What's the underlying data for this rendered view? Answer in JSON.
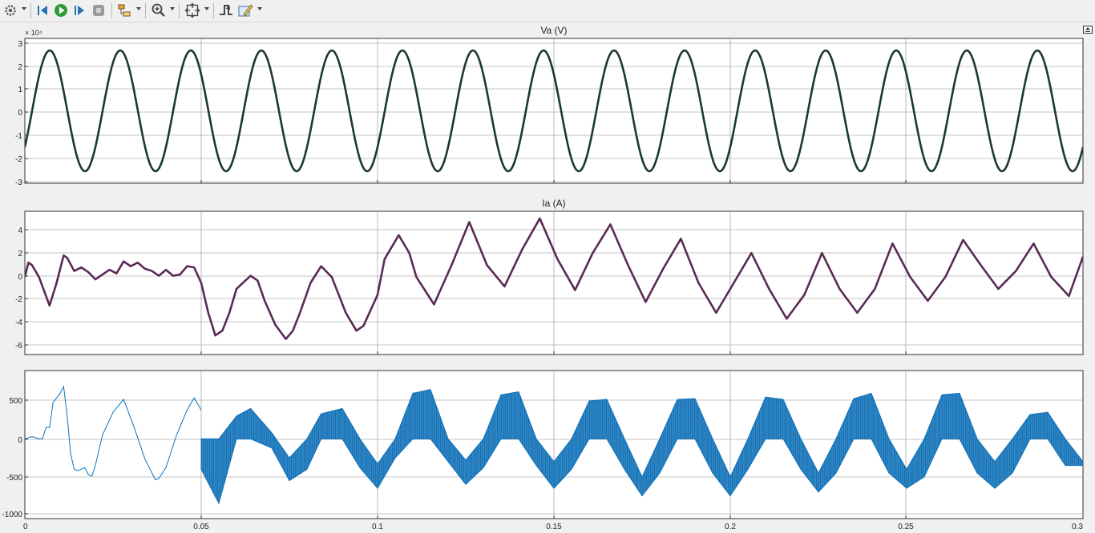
{
  "window": {
    "type": "scope"
  },
  "toolbar": {
    "buttons": [
      {
        "name": "settings-gear-icon",
        "dropdown": true
      },
      {
        "name": "step-back-icon"
      },
      {
        "name": "run-icon"
      },
      {
        "name": "step-forward-icon"
      },
      {
        "name": "stop-icon"
      },
      {
        "name": "highlight-block-icon",
        "dropdown": true
      },
      {
        "name": "zoom-in-icon",
        "dropdown": true
      },
      {
        "name": "autoscale-icon",
        "dropdown": true
      },
      {
        "name": "triggers-icon"
      },
      {
        "name": "write-data-icon",
        "dropdown": true
      }
    ]
  },
  "plots": [
    {
      "title": "Va (V)",
      "exponent": "× 10⁴",
      "yticks": [
        "3",
        "2",
        "1",
        "0",
        "-1",
        "-2",
        "-3"
      ],
      "color": "#1b3a2c"
    },
    {
      "title": "Ia (A)",
      "exponent": "",
      "yticks": [
        "4",
        "2",
        "0",
        "-2",
        "-4",
        "-6"
      ],
      "color": "#5a2a55"
    },
    {
      "title": "",
      "exponent": "",
      "yticks": [
        "500",
        "0",
        "-500",
        "-1000"
      ],
      "color": "#0b72bd"
    }
  ],
  "xticks": [
    "0",
    "0.05",
    "0.1",
    "0.15",
    "0.2",
    "0.25",
    "0.3"
  ],
  "chart_data": [
    {
      "type": "line",
      "title": "Va (V)",
      "xlim": [
        0,
        0.3
      ],
      "ylim": [
        -30000,
        30000
      ],
      "y_scale_factor": "×10^4",
      "grid": true,
      "series": [
        {
          "waveform": "sinusoid",
          "frequency_hz": 50,
          "amplitude": 25000,
          "y_at_t0": -15000
        }
      ]
    },
    {
      "type": "line",
      "title": "Ia (A)",
      "xlim": [
        0,
        0.3
      ],
      "ylim": [
        -7,
        5
      ],
      "grid": true,
      "series": [
        {
          "x": [
            0,
            0.001,
            0.002,
            0.004,
            0.007,
            0.009,
            0.011,
            0.012,
            0.014,
            0.016,
            0.018,
            0.02,
            0.022,
            0.024,
            0.026,
            0.028,
            0.03,
            0.032,
            0.034,
            0.036,
            0.038,
            0.04,
            0.042,
            0.044,
            0.046,
            0.048,
            0.05,
            0.052,
            0.054,
            0.056,
            0.058,
            0.06,
            0.064,
            0.066,
            0.068,
            0.071,
            0.074,
            0.076,
            0.078,
            0.081,
            0.084,
            0.087,
            0.091,
            0.094,
            0.096,
            0.1,
            0.102,
            0.106,
            0.109,
            0.111,
            0.116,
            0.121,
            0.126,
            0.131,
            0.136,
            0.141,
            0.146,
            0.151,
            0.156,
            0.161,
            0.166,
            0.171,
            0.176,
            0.181,
            0.186,
            0.191,
            0.196,
            0.201,
            0.206,
            0.211,
            0.216,
            0.221,
            0.226,
            0.231,
            0.236,
            0.241,
            0.246,
            0.251,
            0.256,
            0.261,
            0.266,
            0.271,
            0.276,
            0.281,
            0.286,
            0.291,
            0.296,
            0.3
          ],
          "y": [
            -0.5,
            0.7,
            0.5,
            -0.5,
            -2.9,
            -1.0,
            1.3,
            1.1,
            0.0,
            0.3,
            -0.1,
            -0.7,
            -0.3,
            0.1,
            -0.2,
            0.8,
            0.4,
            0.7,
            0.2,
            0.0,
            -0.4,
            0.1,
            -0.4,
            -0.3,
            0.4,
            0.3,
            -1.0,
            -3.5,
            -5.4,
            -5.0,
            -3.5,
            -1.5,
            -0.4,
            -0.8,
            -2.5,
            -4.5,
            -5.7,
            -5.0,
            -3.5,
            -1.0,
            0.4,
            -0.5,
            -3.5,
            -5.0,
            -4.6,
            -2.0,
            1.0,
            3.0,
            1.5,
            -0.5,
            -2.8,
            0.5,
            4.1,
            0.5,
            -1.3,
            1.8,
            4.4,
            1.0,
            -1.6,
            1.5,
            3.9,
            0.5,
            -2.6,
            0.2,
            2.7,
            -1.0,
            -3.5,
            -1.0,
            1.5,
            -1.5,
            -4.0,
            -2.0,
            1.5,
            -1.5,
            -3.5,
            -1.5,
            2.3,
            -0.5,
            -2.5,
            -0.5,
            2.6,
            0.5,
            -1.5,
            0.0,
            2.3,
            -0.5,
            -2.1,
            1.2
          ]
        }
      ]
    },
    {
      "type": "line",
      "title": "",
      "xlim": [
        0,
        0.3
      ],
      "ylim": [
        -1050,
        900
      ],
      "grid": true,
      "series": [
        {
          "name": "",
          "segment": "initial",
          "x": [
            0,
            0.002,
            0.004,
            0.005,
            0.006,
            0.007,
            0.008,
            0.01,
            0.011,
            0.012,
            0.013,
            0.014,
            0.015,
            0.017,
            0.018,
            0.019,
            0.02,
            0.022,
            0.025,
            0.028,
            0.031,
            0.034,
            0.037,
            0.038,
            0.04,
            0.043,
            0.046,
            0.048,
            0.05
          ],
          "y": [
            0,
            30,
            0,
            0,
            150,
            150,
            480,
            600,
            690,
            300,
            -200,
            -400,
            -420,
            -380,
            -470,
            -490,
            -350,
            50,
            350,
            520,
            150,
            -260,
            -540,
            -520,
            -380,
            50,
            380,
            540,
            380
          ]
        },
        {
          "name": "",
          "segment": "switching",
          "x": [
            0.05,
            0.055,
            0.06,
            0.064,
            0.07,
            0.075,
            0.08,
            0.084,
            0.09,
            0.095,
            0.1,
            0.105,
            0.11,
            0.115,
            0.12,
            0.125,
            0.13,
            0.135,
            0.14,
            0.145,
            0.15,
            0.155,
            0.16,
            0.165,
            0.17,
            0.175,
            0.18,
            0.185,
            0.19,
            0.195,
            0.2,
            0.205,
            0.21,
            0.215,
            0.22,
            0.225,
            0.23,
            0.235,
            0.24,
            0.245,
            0.25,
            0.255,
            0.26,
            0.265,
            0.27,
            0.275,
            0.28,
            0.285,
            0.29,
            0.295,
            0.3
          ],
          "upper": [
            0,
            0,
            300,
            400,
            80,
            -250,
            0,
            330,
            400,
            0,
            -330,
            0,
            600,
            650,
            0,
            -280,
            0,
            580,
            620,
            0,
            -300,
            0,
            500,
            520,
            0,
            -500,
            0,
            520,
            530,
            0,
            -500,
            0,
            550,
            520,
            0,
            -450,
            0,
            530,
            600,
            0,
            -400,
            0,
            580,
            600,
            0,
            -300,
            0,
            320,
            350,
            0,
            -300
          ],
          "lower": [
            -400,
            -850,
            0,
            0,
            -120,
            -550,
            -400,
            0,
            0,
            -380,
            -650,
            -250,
            0,
            0,
            -300,
            -600,
            -380,
            0,
            0,
            -350,
            -650,
            -400,
            0,
            0,
            -400,
            -750,
            -450,
            0,
            0,
            -450,
            -750,
            -400,
            0,
            0,
            -400,
            -700,
            -450,
            0,
            0,
            -450,
            -650,
            -500,
            0,
            0,
            -450,
            -650,
            -450,
            0,
            0,
            -350,
            -350
          ]
        }
      ]
    }
  ]
}
